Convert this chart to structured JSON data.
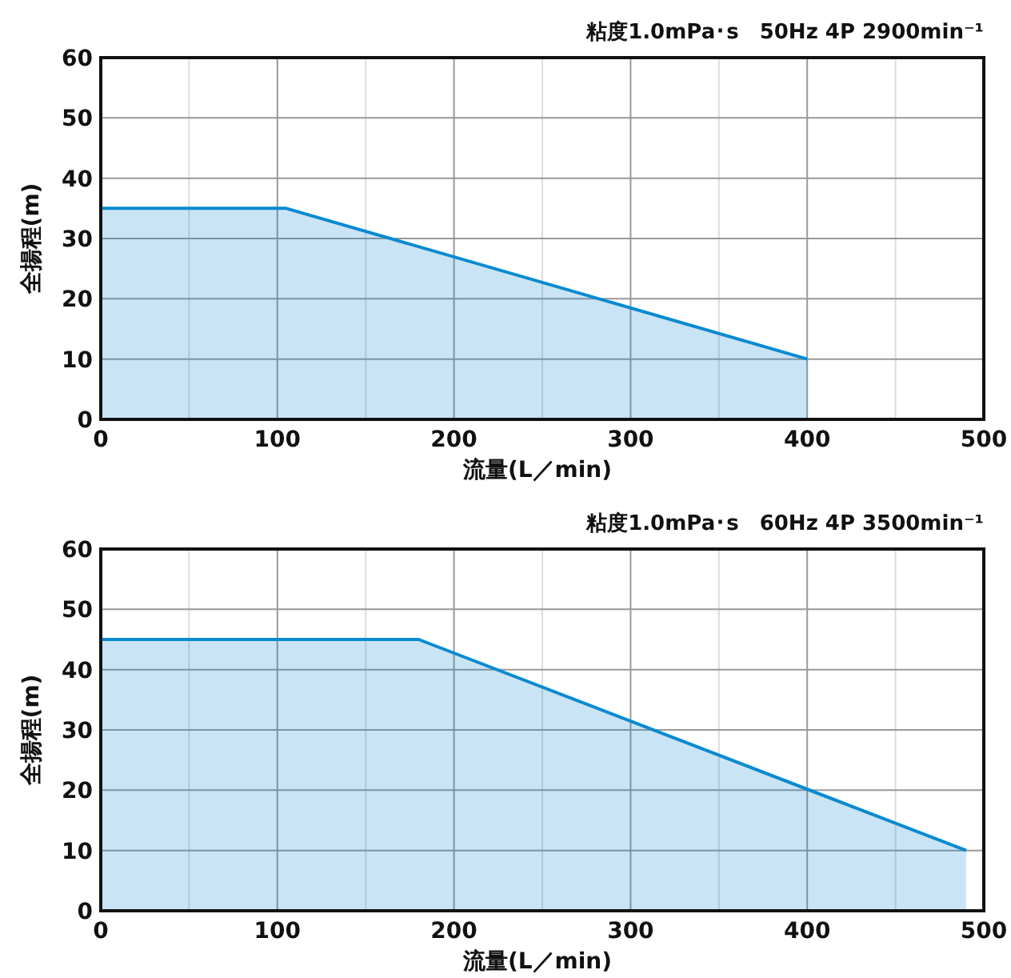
{
  "chart_data": [
    {
      "type": "area",
      "title": "粘度1.0mPa･s　50Hz 4P 2900min⁻¹",
      "xlabel": "流量(L／min)",
      "ylabel": "全揚程(m)",
      "x": [
        0,
        105,
        400
      ],
      "series": [
        {
          "color": "#0a8ad0",
          "values": [
            35,
            35,
            10
          ]
        }
      ],
      "xlim": [
        0,
        500
      ],
      "ylim": [
        0,
        60
      ],
      "xticks": [
        0,
        100,
        200,
        300,
        400,
        500
      ],
      "yticks": [
        0,
        10,
        20,
        30,
        40,
        50,
        60
      ],
      "grid": true
    },
    {
      "type": "area",
      "title": "粘度1.0mPa･s　60Hz 4P 3500min⁻¹",
      "xlabel": "流量(L／min)",
      "ylabel": "全揚程(m)",
      "x": [
        0,
        180,
        490
      ],
      "series": [
        {
          "color": "#0a8ad0",
          "values": [
            45,
            45,
            10
          ]
        }
      ],
      "xlim": [
        0,
        500
      ],
      "ylim": [
        0,
        60
      ],
      "xticks": [
        0,
        100,
        200,
        300,
        400,
        500
      ],
      "yticks": [
        0,
        10,
        20,
        30,
        40,
        50,
        60
      ],
      "grid": true
    }
  ]
}
